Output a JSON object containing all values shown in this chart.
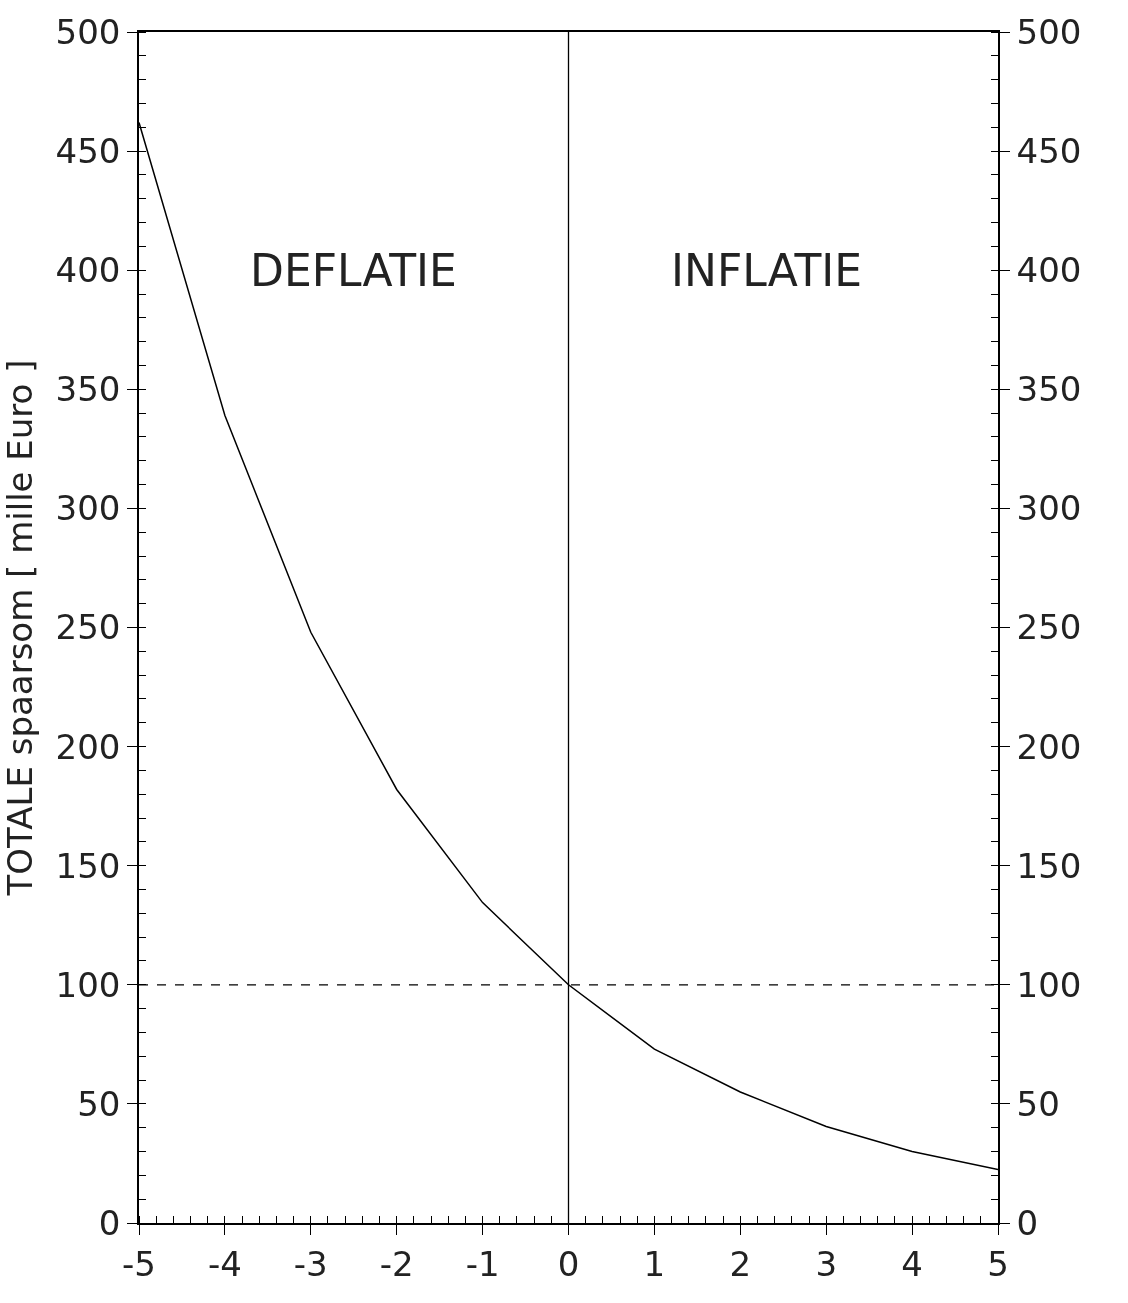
{
  "chart_data": {
    "type": "line",
    "ylabel": "TOTALE spaarsom [ mille Euro ]",
    "x": [
      -5,
      -4,
      -3,
      -2,
      -1,
      0,
      1,
      2,
      3,
      4,
      5
    ],
    "series": [
      {
        "color": "#000000",
        "values": [
          462,
          339,
          248,
          182,
          134.5,
          100,
          73,
          55,
          40.5,
          30,
          22.5
        ]
      }
    ],
    "xlim": [
      -5,
      5
    ],
    "xticks": [
      -5,
      -4,
      -3,
      -2,
      -1,
      0,
      1,
      2,
      3,
      4,
      5
    ],
    "ylim": [
      0,
      500
    ],
    "yticks": [
      0,
      50,
      100,
      150,
      200,
      250,
      300,
      350,
      400,
      450,
      500
    ],
    "y2lim": [
      0,
      500
    ],
    "y2ticks": [
      0,
      50,
      100,
      150,
      200,
      250,
      300,
      350,
      400,
      450,
      500
    ],
    "ref_lines": [
      {
        "axis": "x",
        "value": 0,
        "label": null,
        "color": "#000000",
        "line_style": "solid"
      },
      {
        "axis": "y",
        "value": 100,
        "label": null,
        "color": "#000000",
        "line_style": "dashed"
      }
    ],
    "annotations": [
      "DEFLATIE",
      "INFLATIE"
    ],
    "marker": "none",
    "line_style": "solid"
  }
}
